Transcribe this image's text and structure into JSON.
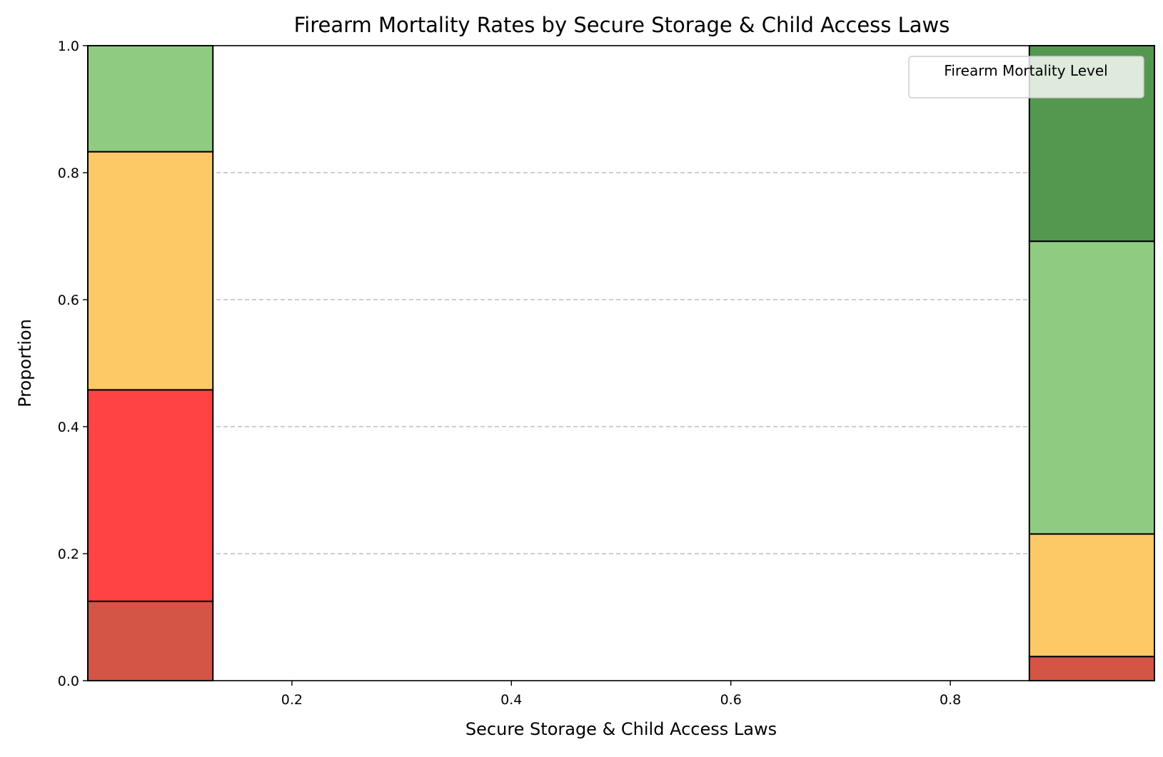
{
  "chart_data": {
    "type": "bar",
    "title": "Firearm Mortality Rates by Secure Storage & Child Access Laws",
    "xlabel": "Secure Storage & Child Access Laws",
    "ylabel": "Proportion",
    "xlim": [
      0.014,
      0.986
    ],
    "ylim": [
      0.0,
      1.0
    ],
    "xticks": [
      "0.2",
      "0.4",
      "0.6",
      "0.8"
    ],
    "xtick_values": [
      0.2,
      0.4,
      0.6,
      0.8
    ],
    "yticks": [
      "0.0",
      "0.2",
      "0.4",
      "0.6",
      "0.8",
      "1.0"
    ],
    "ytick_values": [
      0.0,
      0.2,
      0.4,
      0.6,
      0.8,
      1.0
    ],
    "grid": "y-dashed",
    "legend": {
      "title": "Firearm Mortality Level",
      "placement": "top-right"
    },
    "bins": [
      {
        "x_range": [
          0.014,
          0.128
        ],
        "segments": [
          {
            "bottom": 0.0,
            "top": 0.125,
            "color": "#d45445"
          },
          {
            "bottom": 0.125,
            "top": 0.458,
            "color": "#ff4242"
          },
          {
            "bottom": 0.458,
            "top": 0.833,
            "color": "#fcc966"
          },
          {
            "bottom": 0.833,
            "top": 1.0,
            "color": "#8fcc82"
          }
        ]
      },
      {
        "x_range": [
          0.872,
          0.986
        ],
        "segments": [
          {
            "bottom": 0.0,
            "top": 0.038,
            "color": "#d45445"
          },
          {
            "bottom": 0.038,
            "top": 0.231,
            "color": "#fcc966"
          },
          {
            "bottom": 0.231,
            "top": 0.692,
            "color": "#8fcc82"
          },
          {
            "bottom": 0.692,
            "top": 1.0,
            "color": "#54974f"
          }
        ]
      }
    ]
  }
}
